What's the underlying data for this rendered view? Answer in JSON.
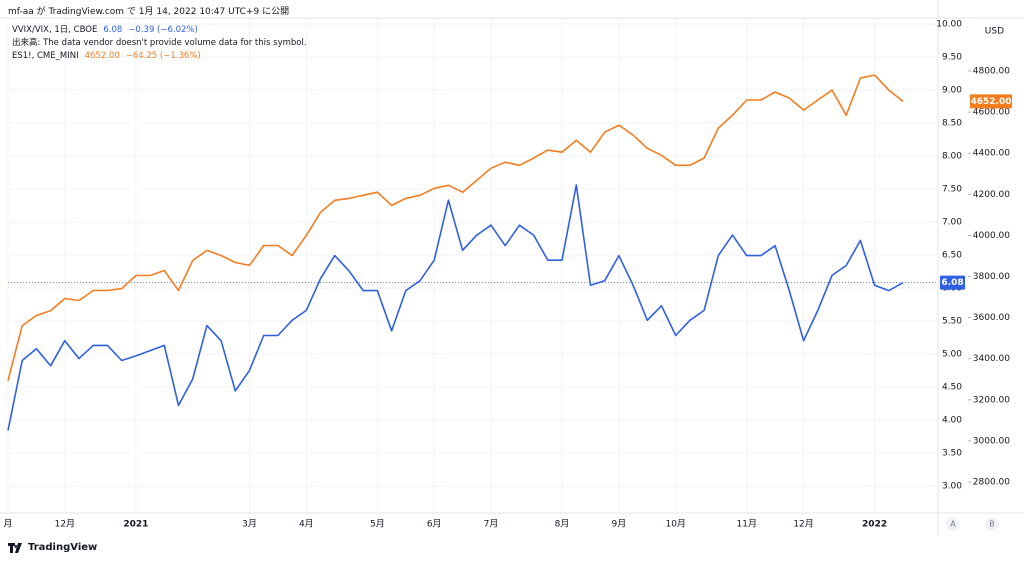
{
  "header": "mf-aa が TradingView.com で 1月 14, 2022 10:47 UTC+9 に公開",
  "footer": "TradingView",
  "buttons": [
    "A",
    "B"
  ],
  "chart_data": {
    "type": "line",
    "volume_note": "出来高: The data vendor doesn't provide volume data for this symbol.",
    "y2_unit": "USD",
    "categories": [
      "月",
      null,
      null,
      null,
      "12月",
      null,
      null,
      null,
      null,
      "2021",
      null,
      null,
      null,
      null,
      null,
      null,
      null,
      "3月",
      null,
      null,
      null,
      "4月",
      null,
      null,
      null,
      null,
      "5月",
      null,
      null,
      null,
      "6月",
      null,
      null,
      null,
      "7月",
      null,
      null,
      null,
      null,
      "8月",
      null,
      null,
      null,
      "9月",
      null,
      null,
      null,
      "10月",
      null,
      null,
      null,
      null,
      "11月",
      null,
      null,
      null,
      "12月",
      null,
      null,
      null,
      null,
      "2022",
      null,
      null
    ],
    "series": [
      {
        "name": "VVIX/VIX, 1日, CBOE",
        "last": "6.08",
        "change": "−0.39 (−6.02%)",
        "color": "#2f5fe3",
        "axis": "y",
        "values": [
          3.84,
          4.9,
          5.08,
          4.82,
          5.2,
          4.93,
          5.13,
          5.13,
          4.9,
          4.97,
          5.05,
          5.13,
          4.22,
          4.62,
          5.43,
          5.2,
          4.44,
          4.75,
          5.28,
          5.28,
          5.51,
          5.66,
          6.14,
          6.49,
          6.26,
          5.96,
          5.96,
          5.35,
          5.96,
          6.11,
          6.42,
          7.33,
          6.57,
          6.8,
          6.95,
          6.64,
          6.95,
          6.8,
          6.42,
          6.42,
          7.56,
          6.04,
          6.11,
          6.49,
          6.04,
          5.51,
          5.73,
          5.28,
          5.51,
          5.66,
          6.49,
          6.8,
          6.49,
          6.49,
          6.64,
          5.96,
          5.2,
          5.66,
          6.19,
          6.34,
          6.72,
          6.04,
          5.96,
          6.08
        ]
      },
      {
        "name": "ES1!, CME_MINI",
        "last": "4652.00",
        "change": "−64.25 (−1.36%)",
        "color": "#f57c1f",
        "axis": "y2",
        "values": [
          3293,
          3561,
          3610,
          3634,
          3693,
          3683,
          3732,
          3732,
          3741,
          3805,
          3805,
          3829,
          3732,
          3878,
          3927,
          3902,
          3868,
          3854,
          3951,
          3951,
          3902,
          4000,
          4112,
          4171,
          4180,
          4195,
          4210,
          4146,
          4180,
          4195,
          4229,
          4244,
          4210,
          4268,
          4327,
          4356,
          4341,
          4376,
          4415,
          4405,
          4463,
          4405,
          4502,
          4537,
          4488,
          4424,
          4390,
          4341,
          4341,
          4376,
          4522,
          4585,
          4659,
          4659,
          4698,
          4668,
          4610,
          4659,
          4707,
          4585,
          4766,
          4780,
          4707,
          4652
        ]
      }
    ],
    "ylim": [
      2.59,
      10.09
    ],
    "yticks": [
      {
        "value": 3,
        "label": "3.00"
      },
      {
        "value": 3.5,
        "label": "3.50"
      },
      {
        "value": 4,
        "label": "4.00"
      },
      {
        "value": 4.5,
        "label": "4.50"
      },
      {
        "value": 5,
        "label": "5.00"
      },
      {
        "value": 5.5,
        "label": "5.50"
      },
      {
        "value": 6,
        "label": "6.00"
      },
      {
        "value": 6.5,
        "label": "6.50"
      },
      {
        "value": 7,
        "label": "7.00"
      },
      {
        "value": 7.5,
        "label": "7.50"
      },
      {
        "value": 8,
        "label": "8.00"
      },
      {
        "value": 8.5,
        "label": "8.50"
      },
      {
        "value": 9,
        "label": "9.00"
      },
      {
        "value": 9.5,
        "label": "9.50"
      },
      {
        "value": 10,
        "label": "10.00"
      }
    ],
    "y2lim": [
      2649,
      5058
    ],
    "y2ticks": [
      {
        "value": 2800,
        "label": "2800.00"
      },
      {
        "value": 3000,
        "label": "3000.00"
      },
      {
        "value": 3200,
        "label": "3200.00"
      },
      {
        "value": 3400,
        "label": "3400.00"
      },
      {
        "value": 3600,
        "label": "3600.00"
      },
      {
        "value": 3800,
        "label": "3800.00"
      },
      {
        "value": 4000,
        "label": "4000.00"
      },
      {
        "value": 4200,
        "label": "4200.00"
      },
      {
        "value": 4400,
        "label": "4400.00"
      },
      {
        "value": 4600,
        "label": "4600.00"
      },
      {
        "value": 4800,
        "label": "4800.00"
      }
    ],
    "grid": true
  }
}
